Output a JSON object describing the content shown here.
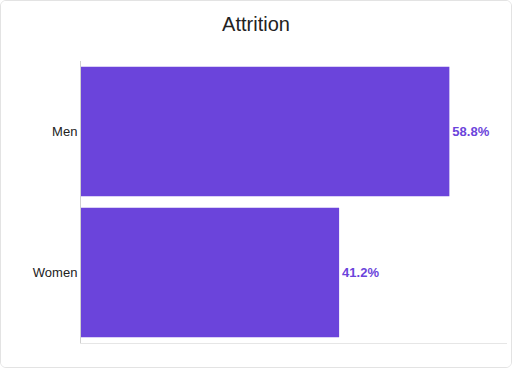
{
  "chart_data": {
    "type": "bar",
    "title": "Attrition",
    "orientation": "horizontal",
    "categories": [
      "Men",
      "Women"
    ],
    "values": [
      58.8,
      41.2
    ],
    "value_labels": [
      "58.8%",
      "41.2%"
    ],
    "color": "#6b44db",
    "data_labels": true,
    "tick_labels": "y",
    "grid": false,
    "xlim": [
      0,
      68
    ],
    "xticks": []
  }
}
